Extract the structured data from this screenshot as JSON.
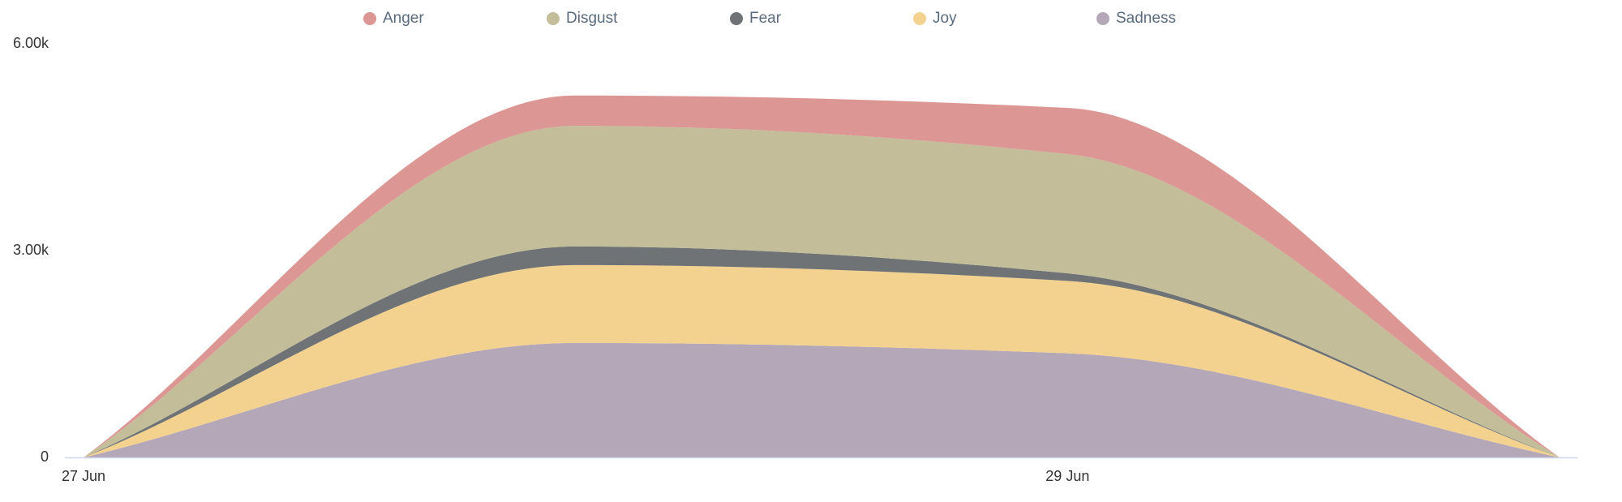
{
  "chart_data": {
    "type": "stacked-area",
    "categories": [
      "27 Jun",
      null,
      "29 Jun",
      null
    ],
    "series": [
      {
        "name": "Anger",
        "color": "#dc9693",
        "values": [
          0,
          440,
          670,
          0
        ]
      },
      {
        "name": "Disgust",
        "color": "#c3bd99",
        "values": [
          0,
          1750,
          1730,
          0
        ]
      },
      {
        "name": "Fear",
        "color": "#6f7375",
        "values": [
          0,
          270,
          110,
          0
        ]
      },
      {
        "name": "Joy",
        "color": "#f3d28f",
        "values": [
          0,
          1130,
          1050,
          0
        ]
      },
      {
        "name": "Sadness",
        "color": "#b4a7b8",
        "values": [
          0,
          1660,
          1510,
          0
        ]
      }
    ],
    "ylim": [
      0,
      6000
    ],
    "yticks": [
      0,
      {
        "value": 3000,
        "label": "3.00k"
      },
      {
        "value": 6000,
        "label": "6.00k"
      }
    ],
    "grid": false,
    "legend": "top"
  }
}
